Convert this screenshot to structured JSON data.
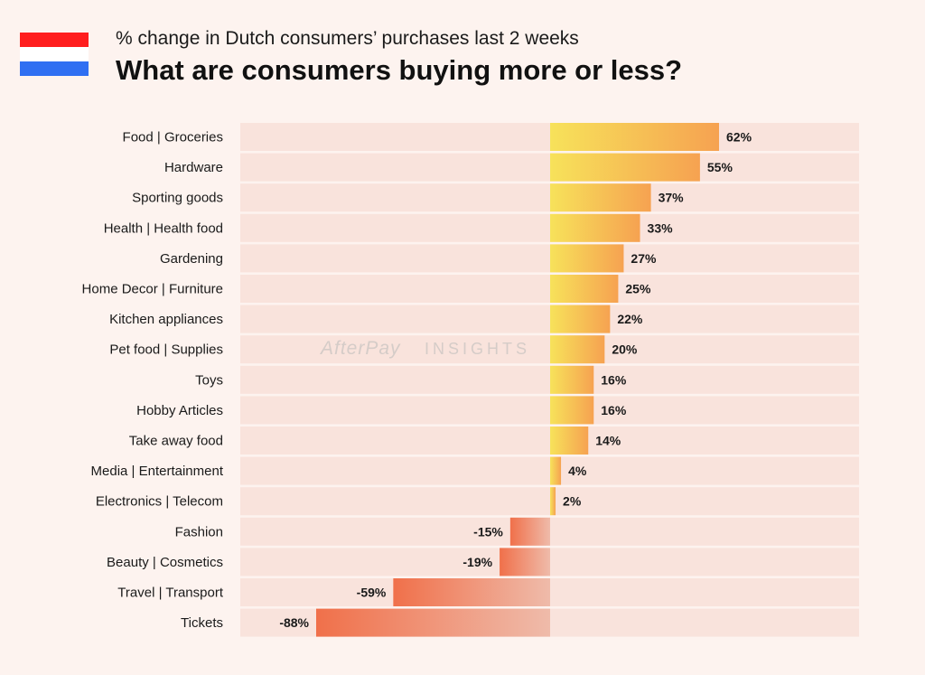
{
  "header": {
    "subtitle": "% change in Dutch consumers’ purchases last 2 weeks",
    "title": "What are consumers buying more or less?",
    "flag_colors": [
      "#ff1e1e",
      "#ffffff",
      "#2f6ff2"
    ]
  },
  "watermark": {
    "brand": "AfterPay",
    "suffix": "INSIGHTS"
  },
  "colors": {
    "background": "#fdf3ef",
    "row_background": "#f9e3dc",
    "positive_light": "#f7e25a",
    "positive_dark": "#f6a251",
    "negative_light": "#efbbaa",
    "negative_dark": "#f0704a"
  },
  "chart_data": {
    "type": "bar",
    "orientation": "horizontal",
    "categories": [
      "Food | Groceries",
      "Hardware",
      "Sporting goods",
      "Health | Health food",
      "Gardening",
      "Home Decor | Furniture",
      "Kitchen appliances",
      "Pet food | Supplies",
      "Toys",
      "Hobby Articles",
      "Take away food",
      "Media | Entertainment",
      "Electronics | Telecom",
      "Fashion",
      "Beauty | Cosmetics",
      "Travel | Transport",
      "Tickets"
    ],
    "values": [
      62,
      55,
      37,
      33,
      27,
      25,
      22,
      20,
      16,
      16,
      14,
      4,
      2,
      -15,
      -19,
      -59,
      -88
    ],
    "value_labels": [
      "62%",
      "55%",
      "37%",
      "33%",
      "27%",
      "25%",
      "22%",
      "20%",
      "16%",
      "16%",
      "14%",
      "4%",
      "2%",
      "-15%",
      "-19%",
      "-59%",
      "-88%"
    ],
    "xlim": [
      -100,
      100
    ],
    "grid": false,
    "legend": "none"
  }
}
